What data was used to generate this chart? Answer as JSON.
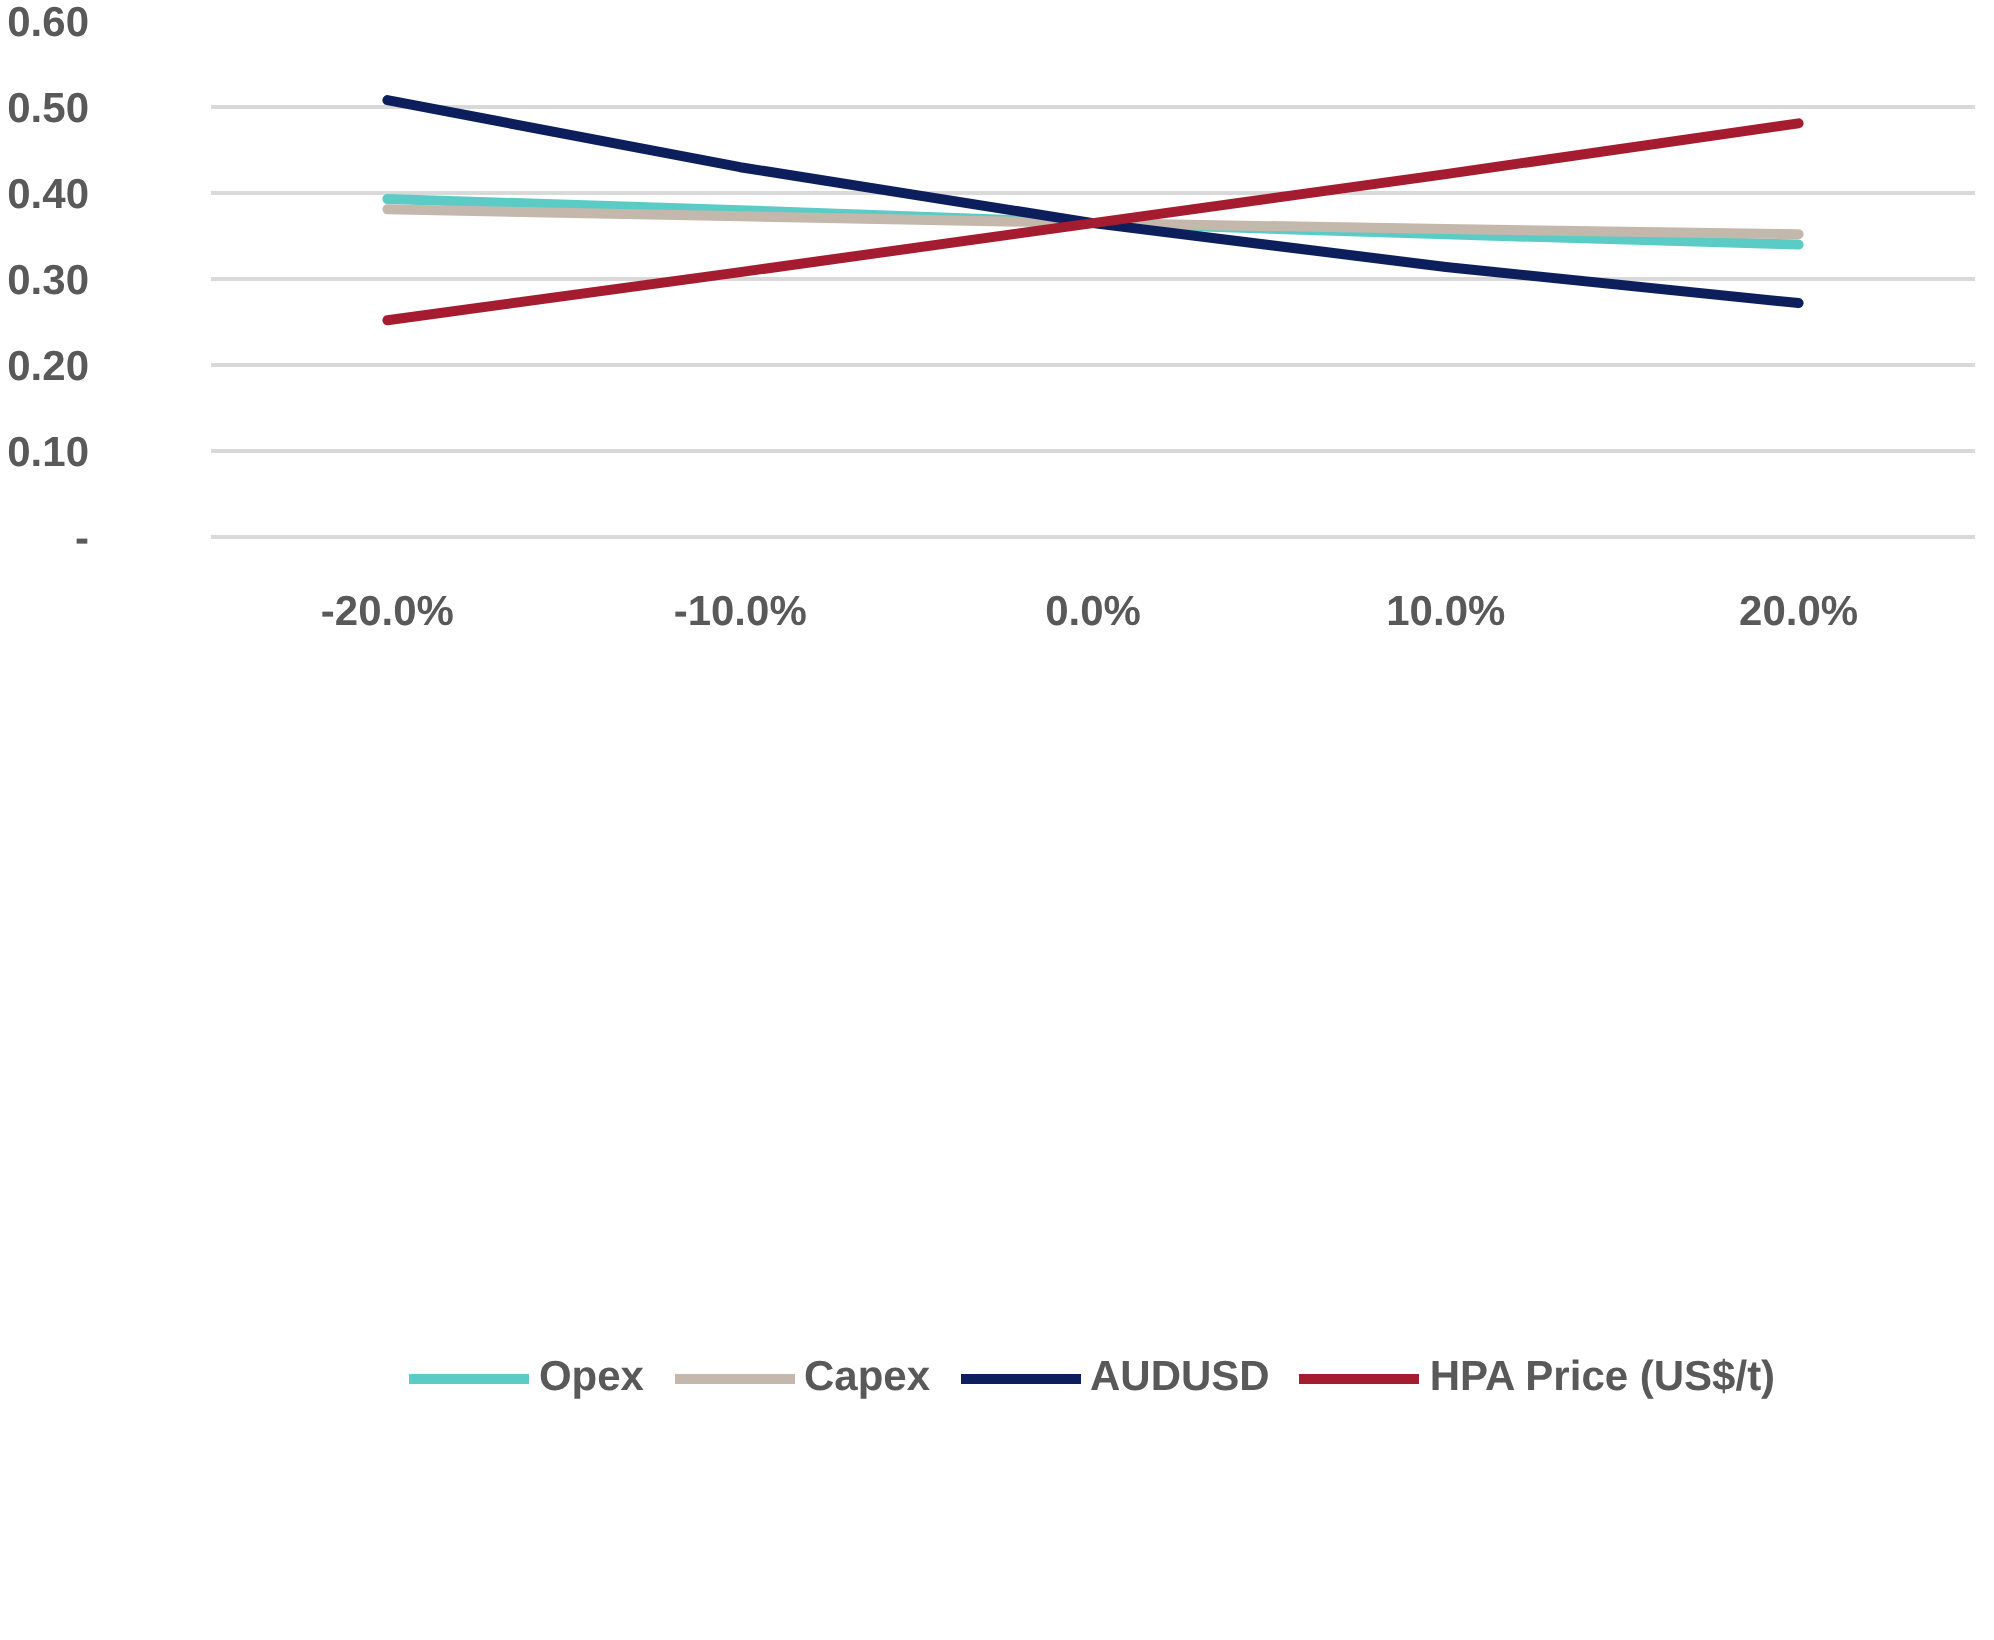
{
  "chart_data": {
    "type": "line",
    "categories": [
      "-20.0%",
      "-10.0%",
      "0.0%",
      "10.0%",
      "20.0%"
    ],
    "series": [
      {
        "name": "Opex",
        "color": "#5bcbc6",
        "values": [
          0.393,
          0.38,
          0.365,
          0.352,
          0.34
        ]
      },
      {
        "name": "Capex",
        "color": "#c4b8ad",
        "values": [
          0.381,
          0.373,
          0.365,
          0.358,
          0.352
        ]
      },
      {
        "name": "AUDUSD",
        "color": "#0c1f5c",
        "values": [
          0.508,
          0.43,
          0.365,
          0.314,
          0.272
        ]
      },
      {
        "name": "HPA Price (US$/t)",
        "color": "#a51c30",
        "values": [
          0.252,
          0.308,
          0.365,
          0.422,
          0.481
        ]
      }
    ],
    "ylim": [
      0,
      0.6
    ],
    "yticks": [
      {
        "value": 0,
        "label": "-"
      },
      {
        "value": 0.1,
        "label": "0.10"
      },
      {
        "value": 0.2,
        "label": "0.20"
      },
      {
        "value": 0.3,
        "label": "0.30"
      },
      {
        "value": 0.4,
        "label": "0.40"
      },
      {
        "value": 0.5,
        "label": "0.50"
      },
      {
        "value": 0.6,
        "label": "0.60"
      }
    ],
    "grid": "y",
    "legend": "bottom",
    "marker": "none",
    "line_style": "solid"
  }
}
